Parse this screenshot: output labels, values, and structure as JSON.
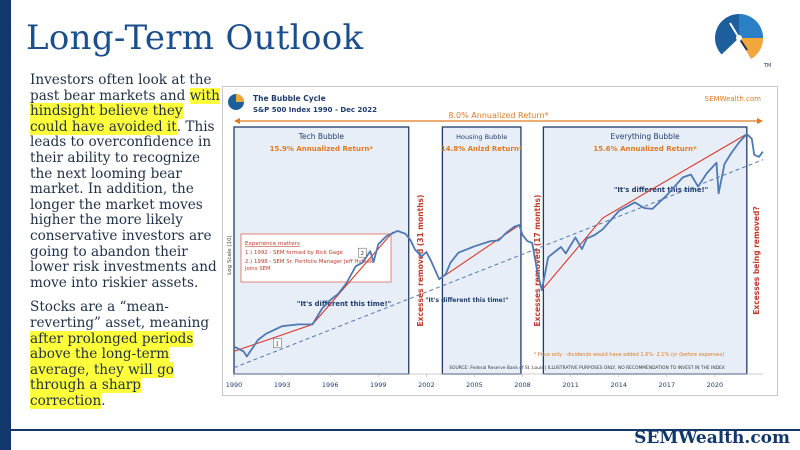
{
  "slide": {
    "title": "Long-Term Outlook",
    "footer_brand": "SEMWealth.com",
    "logo_icon": "sem-compass-logo-icon",
    "accent_navy": "#12386b",
    "title_color": "#1a4e8c",
    "highlight_color": "#ffff3c"
  },
  "body": {
    "p1_a": "Investors often look at the past bear markets and ",
    "p1_b": "with hindsight believe they could have avoided it",
    "p1_c": ". This leads to overconfidence in their ability to recognize the next looming bear market. In addition, the longer the market moves higher the more likely conservative investors are going to abandon their lower risk investments and move into riskier assets.",
    "p2_a": "Stocks are a “mean-reverting” asset, meaning ",
    "p2_b": "after prolonged periods above the long-term average, they will go through a sharp correction",
    "p2_c": "."
  },
  "chart_data": {
    "type": "line",
    "title": "The Bubble Cycle",
    "subtitle": "S&P 500 Index 1990 - Dec 2022",
    "brand": "SEMWealth.com",
    "ylabel": "Log Scale (10)",
    "y_scale": "log",
    "x_tick_labels": [
      "1990",
      "1993",
      "1996",
      "1999",
      "2002",
      "2005",
      "2008",
      "2011",
      "2014",
      "2017",
      "2020"
    ],
    "x_ticks": [
      1990,
      1993,
      1996,
      1999,
      2002,
      2005,
      2008,
      2011,
      2014,
      2017,
      2020
    ],
    "xlim": [
      1990,
      2023
    ],
    "ylim": [
      250,
      5200
    ],
    "overall_return_label": "8.0% Annualized Return*",
    "series": [
      {
        "name": "S&P 500 Index",
        "color": "#4f79b3",
        "x": [
          1990.0,
          1990.6,
          1990.8,
          1991.5,
          1992.0,
          1993.0,
          1994.0,
          1994.9,
          1995.5,
          1996.0,
          1996.5,
          1997.0,
          1997.6,
          1998.0,
          1998.5,
          1998.7,
          1999.0,
          1999.5,
          2000.2,
          2000.7,
          2001.0,
          2001.3,
          2001.7,
          2002.0,
          2002.3,
          2002.8,
          2003.2,
          2003.5,
          2004.0,
          2005.0,
          2006.0,
          2006.5,
          2007.0,
          2007.5,
          2007.8,
          2008.0,
          2008.3,
          2008.6,
          2008.9,
          2009.2,
          2009.6,
          2010.0,
          2010.4,
          2010.7,
          2011.3,
          2011.7,
          2012.0,
          2012.5,
          2013.0,
          2014.0,
          2015.0,
          2015.6,
          2016.1,
          2017.0,
          2018.0,
          2018.5,
          2018.95,
          2019.5,
          2020.1,
          2020.23,
          2020.6,
          2021.0,
          2021.5,
          2021.99,
          2022.3,
          2022.45,
          2022.75,
          2022.99
        ],
        "values": [
          350,
          330,
          310,
          380,
          410,
          450,
          460,
          460,
          560,
          620,
          670,
          760,
          940,
          980,
          1130,
          990,
          1230,
          1360,
          1450,
          1400,
          1300,
          1150,
          1060,
          1120,
          1000,
          800,
          850,
          980,
          1110,
          1200,
          1280,
          1290,
          1420,
          1530,
          1560,
          1380,
          1280,
          1250,
          900,
          700,
          1050,
          1120,
          1190,
          1100,
          1340,
          1160,
          1320,
          1380,
          1480,
          1850,
          2060,
          1920,
          1900,
          2250,
          2800,
          2900,
          2500,
          2950,
          3350,
          2300,
          3300,
          3750,
          4300,
          4770,
          4500,
          3700,
          3600,
          3840
        ]
      },
      {
        "name": "Annualized return trend (bubble periods)",
        "color": "#d9382c",
        "segments": [
          {
            "x": [
              1990.0,
              1994.9,
              1999.9
            ],
            "values": [
              330,
              460,
              1430
            ]
          },
          {
            "x": [
              2002.8,
              2007.8
            ],
            "values": [
              800,
              1560
            ]
          },
          {
            "x": [
              2009.2,
              2013.0,
              2021.99
            ],
            "values": [
              700,
              1700,
              4770
            ]
          }
        ]
      },
      {
        "name": "8.0% long-term trend",
        "color": "#4f79b3",
        "style": "dashed",
        "x": [
          1990,
          2023
        ],
        "values": [
          270,
          3480
        ]
      }
    ],
    "periods": [
      {
        "name": "Tech Bubble",
        "return_label": "15.9% Annualized Return*",
        "x_range": [
          1990.0,
          2000.9
        ],
        "quote": "\"It's different this time!\""
      },
      {
        "name": "Housing Bubble",
        "return_label": "14.8% Anlzd Return*",
        "x_range": [
          2003.0,
          2007.9
        ],
        "quote": "\"It's different this time!\""
      },
      {
        "name": "Everything Bubble",
        "return_label": "15.6% Annualized Return*",
        "x_range": [
          2009.3,
          2021.99
        ],
        "quote": "\"It's different this time!\""
      }
    ],
    "corrections": [
      {
        "label": "Excesses removed (31 months)",
        "x": 2001.6
      },
      {
        "label": "Excesses removed (17 months)",
        "x": 2008.9
      },
      {
        "label": "Excesses being removed?",
        "x": 2022.55
      }
    ],
    "experience_box": {
      "title": "Experience matters",
      "item1": "1.) 1992 - SEM formed by Rick Gage",
      "item2": "2.) 1998 - SEM Sr. Portfolio Manager Jeff Hybiak joins SEM"
    },
    "markers": [
      {
        "label": "1",
        "x": 1992.7,
        "value": 330
      },
      {
        "label": "2",
        "x": 1998.0,
        "value": 1000
      }
    ],
    "footnote": "* Price only - dividends would have added 1.6%- 2.1% /yr (before expenses)",
    "source": "SOURCE: Federal Reserve Bank of St. Louis | ILLUSTRATIVE PURPOSES ONLY, NO RECOMMENDATION TO INVEST IN THE INDEX",
    "colors": {
      "period_border": "#1f3d6b",
      "period_fill": "#e8eef7",
      "correction_text": "#c0392b",
      "return_text": "#e07a22"
    }
  }
}
